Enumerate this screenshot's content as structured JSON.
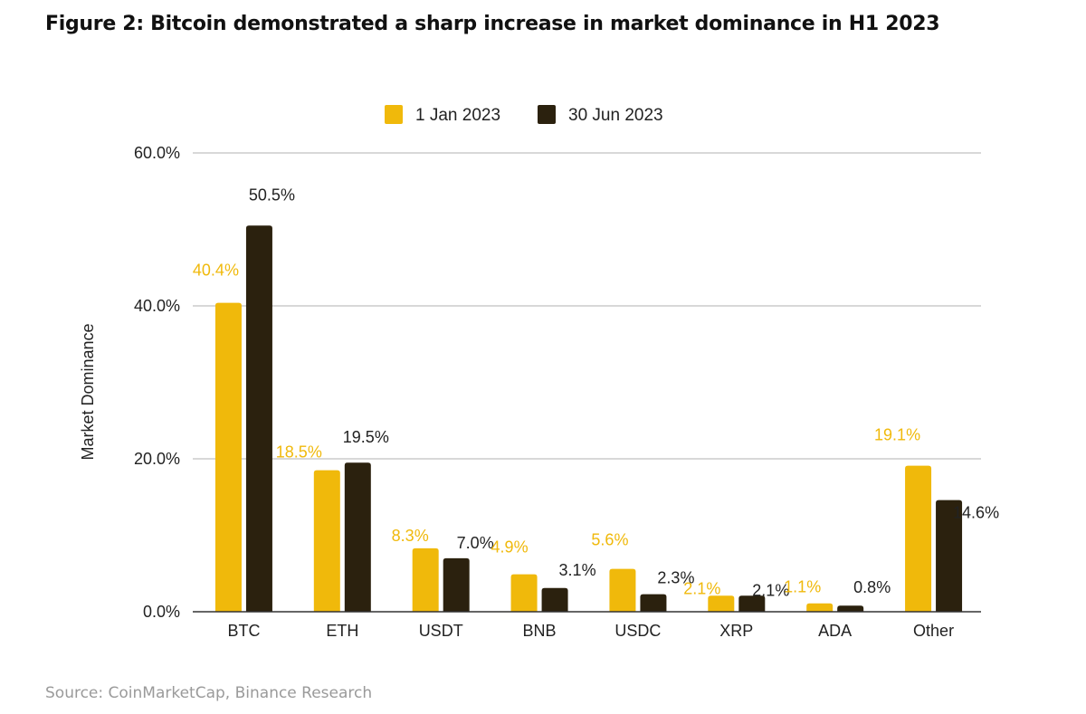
{
  "title": "Figure 2: Bitcoin demonstrated a sharp increase in market dominance in H1 2023",
  "source": "Source: CoinMarketCap, Binance Research",
  "colors": {
    "series1": "#F0B90B",
    "series2": "#2B210E",
    "grid": "#cccccc",
    "axis": "#333333"
  },
  "chart_data": {
    "type": "bar",
    "title": "Figure 2: Bitcoin demonstrated a sharp increase in market dominance in H1 2023",
    "xlabel": "",
    "ylabel": "Market Dominance",
    "ylim": [
      0,
      60
    ],
    "yticks": [
      0,
      20,
      40,
      60
    ],
    "ytick_labels": [
      "0.0%",
      "20.0%",
      "40.0%",
      "60.0%"
    ],
    "grid": true,
    "legend_position": "top-center",
    "categories": [
      "BTC",
      "ETH",
      "USDT",
      "BNB",
      "USDC",
      "XRP",
      "ADA",
      "Other"
    ],
    "series": [
      {
        "name": "1 Jan 2023",
        "values": [
          40.4,
          18.5,
          8.3,
          4.9,
          5.6,
          2.1,
          1.1,
          19.1
        ],
        "labels": [
          "40.4%",
          "18.5%",
          "8.3%",
          "4.9%",
          "5.6%",
          "2.1%",
          "1.1%",
          "19.1%"
        ]
      },
      {
        "name": "30 Jun 2023",
        "values": [
          50.5,
          19.5,
          7.0,
          3.1,
          2.3,
          2.1,
          0.8,
          14.6
        ],
        "labels": [
          "50.5%",
          "19.5%",
          "7.0%",
          "3.1%",
          "2.3%",
          "2.1%",
          "0.8%",
          "14.6%"
        ]
      }
    ]
  }
}
